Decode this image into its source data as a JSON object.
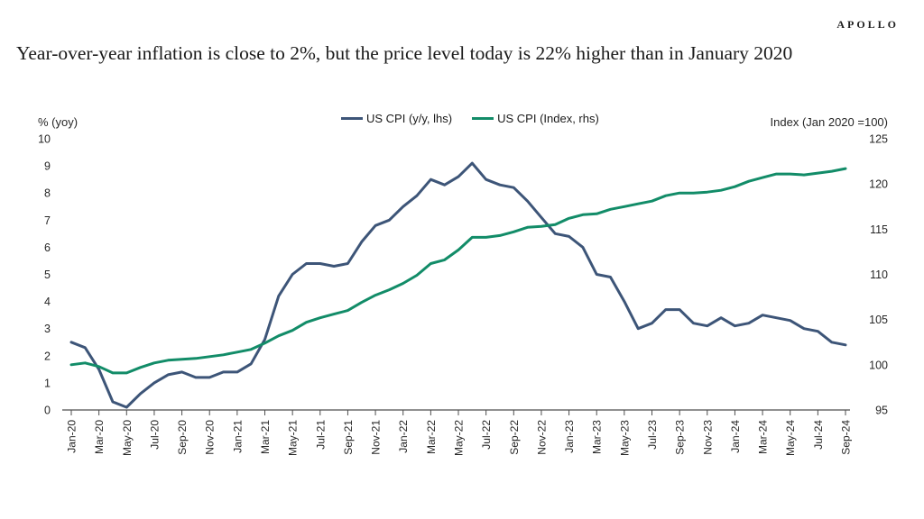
{
  "logo": "APOLLO",
  "title": "Year-over-year inflation is close to 2%, but the price level today is 22% higher than in January 2020",
  "legend": [
    {
      "label": "US CPI (y/y, lhs)",
      "color": "#3d5578"
    },
    {
      "label": "US CPI (Index, rhs)",
      "color": "#128c68"
    }
  ],
  "colors": {
    "navy_line": "#3d5578",
    "teal_line": "#128c68",
    "axis_line": "#4d4d4d",
    "text": "#262626",
    "background": "#ffffff"
  },
  "chart_data": {
    "type": "line",
    "title": "Year-over-year inflation is close to 2%, but the price level today is 22% higher than in January 2020",
    "grid": false,
    "legend_position": "top-center",
    "x": [
      "Jan-20",
      "Feb-20",
      "Mar-20",
      "Apr-20",
      "May-20",
      "Jun-20",
      "Jul-20",
      "Aug-20",
      "Sep-20",
      "Oct-20",
      "Nov-20",
      "Dec-20",
      "Jan-21",
      "Feb-21",
      "Mar-21",
      "Apr-21",
      "May-21",
      "Jun-21",
      "Jul-21",
      "Aug-21",
      "Sep-21",
      "Oct-21",
      "Nov-21",
      "Dec-21",
      "Jan-22",
      "Feb-22",
      "Mar-22",
      "Apr-22",
      "May-22",
      "Jun-22",
      "Jul-22",
      "Aug-22",
      "Sep-22",
      "Oct-22",
      "Nov-22",
      "Dec-22",
      "Jan-23",
      "Feb-23",
      "Mar-23",
      "Apr-23",
      "May-23",
      "Jun-23",
      "Jul-23",
      "Aug-23",
      "Sep-23",
      "Oct-23",
      "Nov-23",
      "Dec-23",
      "Jan-24",
      "Feb-24",
      "Mar-24",
      "Apr-24",
      "May-24",
      "Jun-24",
      "Jul-24",
      "Aug-24",
      "Sep-24"
    ],
    "x_tick_labels": [
      "Jan-20",
      "Mar-20",
      "May-20",
      "Jul-20",
      "Sep-20",
      "Nov-20",
      "Jan-21",
      "Mar-21",
      "May-21",
      "Jul-21",
      "Sep-21",
      "Nov-21",
      "Jan-22",
      "Mar-22",
      "May-22",
      "Jul-22",
      "Sep-22",
      "Nov-22",
      "Jan-23",
      "Mar-23",
      "May-23",
      "Jul-23",
      "Sep-23",
      "Nov-23",
      "Jan-24",
      "Mar-24",
      "May-24",
      "Jul-24",
      "Sep-24"
    ],
    "left_axis": {
      "title": "% (yoy)",
      "min": 0,
      "max": 10,
      "ticks": [
        10,
        9,
        8,
        7,
        6,
        5,
        4,
        3,
        2,
        1,
        0
      ]
    },
    "right_axis": {
      "title": "Index (Jan 2020 =100)",
      "min": 95,
      "max": 125,
      "ticks": [
        125,
        120,
        115,
        110,
        105,
        100,
        95
      ]
    },
    "series": [
      {
        "name": "US CPI (y/y, lhs)",
        "key": "us-cpi-yoy-line",
        "axis": "left",
        "color": "#3d5578",
        "values": [
          2.5,
          2.3,
          1.5,
          0.3,
          0.1,
          0.6,
          1.0,
          1.3,
          1.4,
          1.2,
          1.2,
          1.4,
          1.4,
          1.7,
          2.6,
          4.2,
          5.0,
          5.4,
          5.4,
          5.3,
          5.4,
          6.2,
          6.8,
          7.0,
          7.5,
          7.9,
          8.5,
          8.3,
          8.6,
          9.1,
          8.5,
          8.3,
          8.2,
          7.7,
          7.1,
          6.5,
          6.4,
          6.0,
          5.0,
          4.9,
          4.0,
          3.0,
          3.2,
          3.7,
          3.7,
          3.2,
          3.1,
          3.4,
          3.1,
          3.2,
          3.5,
          3.4,
          3.3,
          3.0,
          2.9,
          2.5,
          2.4
        ]
      },
      {
        "name": "US CPI (Index, rhs)",
        "key": "us-cpi-index-line",
        "axis": "right",
        "color": "#128c68",
        "values": [
          100.0,
          100.2,
          99.8,
          99.1,
          99.1,
          99.7,
          100.2,
          100.5,
          100.6,
          100.7,
          100.9,
          101.1,
          101.4,
          101.7,
          102.4,
          103.2,
          103.8,
          104.7,
          105.2,
          105.6,
          106.0,
          106.9,
          107.7,
          108.3,
          109.0,
          109.9,
          111.2,
          111.6,
          112.7,
          114.1,
          114.1,
          114.3,
          114.7,
          115.2,
          115.3,
          115.5,
          116.2,
          116.6,
          116.7,
          117.2,
          117.5,
          117.8,
          118.1,
          118.7,
          119.0,
          119.0,
          119.1,
          119.3,
          119.7,
          120.3,
          120.7,
          121.1,
          121.1,
          121.0,
          121.2,
          121.4,
          121.7
        ]
      }
    ]
  }
}
